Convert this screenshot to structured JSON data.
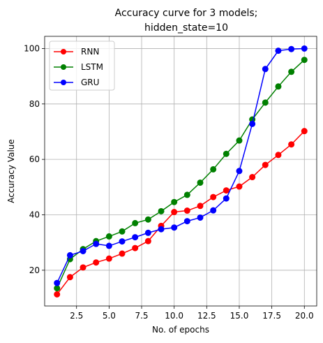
{
  "chart_data": {
    "type": "line",
    "title_lines": [
      "Accuracy curve for 3 models;",
      "hidden_state=10"
    ],
    "xlabel": "No. of epochs",
    "ylabel": "Accuracy Value",
    "xlim": [
      0.05,
      20.95
    ],
    "ylim": [
      7.1,
      104.4
    ],
    "xticks": [
      2.5,
      5.0,
      7.5,
      10.0,
      12.5,
      15.0,
      17.5,
      20.0
    ],
    "xtick_labels": [
      "2.5",
      "5.0",
      "7.5",
      "10.0",
      "12.5",
      "15.0",
      "17.5",
      "20.0"
    ],
    "yticks": [
      20,
      40,
      60,
      80,
      100
    ],
    "ytick_labels": [
      "20",
      "40",
      "60",
      "80",
      "100"
    ],
    "grid": true,
    "legend_position": "top-left",
    "x": [
      1,
      2,
      3,
      4,
      5,
      6,
      7,
      8,
      9,
      10,
      11,
      12,
      13,
      14,
      15,
      16,
      17,
      18,
      19,
      20
    ],
    "series": [
      {
        "name": "RNN",
        "color": "#ff0000",
        "values": [
          11.3,
          17.5,
          21.0,
          22.8,
          24.2,
          26.0,
          28.0,
          30.5,
          36.0,
          41.0,
          41.5,
          43.2,
          46.4,
          48.8,
          50.2,
          53.6,
          58.0,
          61.6,
          65.4,
          70.2
        ]
      },
      {
        "name": "LSTM",
        "color": "#008000",
        "values": [
          13.5,
          24.0,
          27.6,
          30.5,
          32.2,
          34.0,
          37.0,
          38.3,
          41.3,
          44.6,
          47.2,
          51.6,
          56.4,
          62.0,
          66.8,
          74.4,
          80.5,
          86.3,
          91.6,
          95.9
        ]
      },
      {
        "name": "GRU",
        "color": "#0000ff",
        "values": [
          15.4,
          25.4,
          26.9,
          29.5,
          28.8,
          30.4,
          31.9,
          33.5,
          34.8,
          35.4,
          37.7,
          39.0,
          41.6,
          45.9,
          55.8,
          72.8,
          92.6,
          99.2,
          99.8,
          100.0
        ]
      }
    ]
  }
}
